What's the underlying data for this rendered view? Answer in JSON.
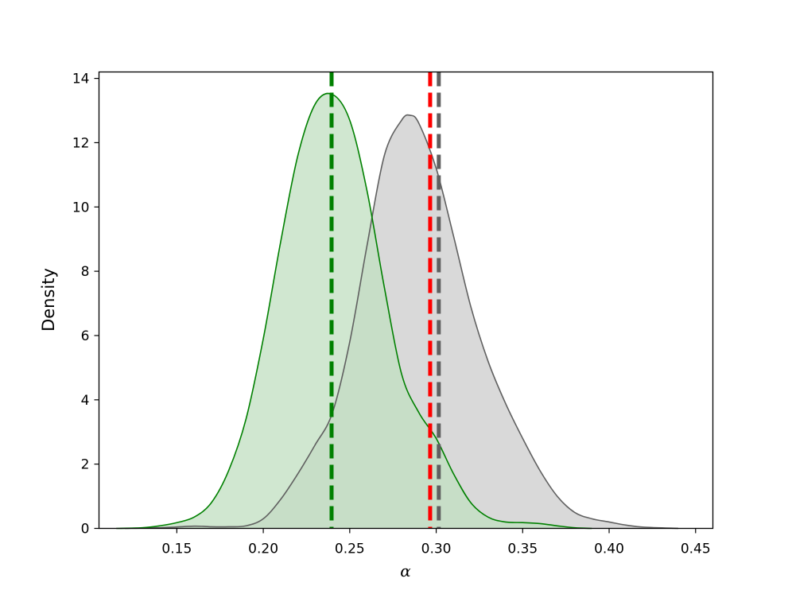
{
  "chart_data": {
    "type": "area",
    "xlabel": "α",
    "ylabel": "Density",
    "xlim": [
      0.105,
      0.46
    ],
    "ylim": [
      0,
      14.2
    ],
    "x_ticks": [
      0.15,
      0.2,
      0.25,
      0.3,
      0.35,
      0.4,
      0.45
    ],
    "x_tick_labels": [
      "0.15",
      "0.20",
      "0.25",
      "0.30",
      "0.35",
      "0.40",
      "0.45"
    ],
    "y_ticks": [
      0,
      2,
      4,
      6,
      8,
      10,
      12,
      14
    ],
    "y_tick_labels": [
      "0",
      "2",
      "4",
      "6",
      "8",
      "10",
      "12",
      "14"
    ],
    "grid": false,
    "series": [
      {
        "color": "#008000",
        "fill": "#c0dfc0",
        "x": [
          0.115,
          0.13,
          0.14,
          0.15,
          0.16,
          0.17,
          0.18,
          0.19,
          0.2,
          0.21,
          0.22,
          0.23,
          0.24,
          0.25,
          0.26,
          0.27,
          0.28,
          0.29,
          0.3,
          0.31,
          0.32,
          0.33,
          0.34,
          0.35,
          0.36,
          0.37,
          0.38,
          0.39
        ],
        "values": [
          0.0,
          0.02,
          0.08,
          0.18,
          0.35,
          0.8,
          1.8,
          3.4,
          5.9,
          8.9,
          11.6,
          13.2,
          13.5,
          12.7,
          10.5,
          7.5,
          4.8,
          3.6,
          2.8,
          1.7,
          0.8,
          0.35,
          0.2,
          0.18,
          0.15,
          0.08,
          0.02,
          0.0
        ]
      },
      {
        "color": "#606060",
        "fill": "#d9d9d9",
        "x": [
          0.12,
          0.14,
          0.16,
          0.17,
          0.18,
          0.19,
          0.2,
          0.21,
          0.22,
          0.23,
          0.24,
          0.25,
          0.26,
          0.27,
          0.28,
          0.285,
          0.29,
          0.3,
          0.31,
          0.32,
          0.33,
          0.34,
          0.35,
          0.36,
          0.37,
          0.38,
          0.39,
          0.4,
          0.41,
          0.42,
          0.44
        ],
        "values": [
          0.0,
          0.02,
          0.07,
          0.05,
          0.05,
          0.08,
          0.3,
          0.9,
          1.7,
          2.6,
          3.6,
          5.8,
          8.8,
          11.6,
          12.7,
          12.85,
          12.6,
          11.2,
          9.1,
          6.9,
          5.2,
          3.9,
          2.8,
          1.8,
          1.0,
          0.5,
          0.3,
          0.2,
          0.1,
          0.04,
          0.0
        ]
      }
    ],
    "vlines": [
      {
        "x": 0.2395,
        "color": "#008000",
        "dash": "dashed"
      },
      {
        "x": 0.2965,
        "color": "#ff0000",
        "dash": "dashed"
      },
      {
        "x": 0.3015,
        "color": "#606060",
        "dash": "dashed"
      }
    ]
  }
}
